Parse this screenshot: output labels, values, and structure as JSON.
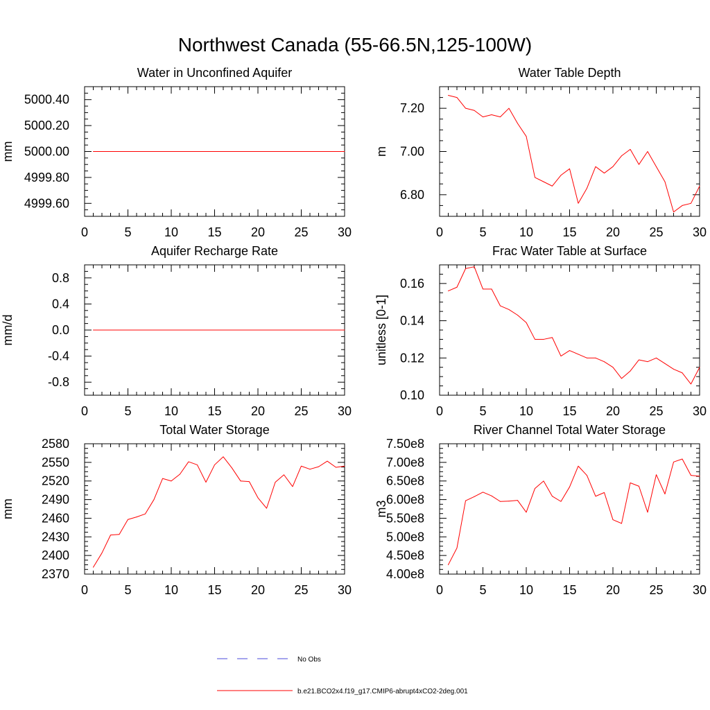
{
  "title": "Northwest Canada (55-66.5N,125-100W)",
  "chart_data": [
    {
      "type": "line",
      "title": "Water in Unconfined Aquifer",
      "ylabel": "mm",
      "xlim": [
        0,
        30
      ],
      "ylim": [
        4999.5,
        5000.5
      ],
      "xticks": [
        0,
        5,
        10,
        15,
        20,
        25,
        30
      ],
      "yticks": [
        4999.6,
        4999.8,
        5000.0,
        5000.2,
        5000.4
      ],
      "ytick_labels": [
        "4999.60",
        "4999.80",
        "5000.00",
        "5000.20",
        "5000.40"
      ],
      "x": [
        1,
        2,
        3,
        4,
        5,
        6,
        7,
        8,
        9,
        10,
        11,
        12,
        13,
        14,
        15,
        16,
        17,
        18,
        19,
        20,
        21,
        22,
        23,
        24,
        25,
        26,
        27,
        28,
        29,
        30
      ],
      "values": [
        5000,
        5000,
        5000,
        5000,
        5000,
        5000,
        5000,
        5000,
        5000,
        5000,
        5000,
        5000,
        5000,
        5000,
        5000,
        5000,
        5000,
        5000,
        5000,
        5000,
        5000,
        5000,
        5000,
        5000,
        5000,
        5000,
        5000,
        5000,
        5000,
        5000
      ]
    },
    {
      "type": "line",
      "title": "Water Table Depth",
      "ylabel": "m",
      "xlim": [
        0,
        30
      ],
      "ylim": [
        6.7,
        7.3
      ],
      "xticks": [
        0,
        5,
        10,
        15,
        20,
        25,
        30
      ],
      "yticks": [
        6.8,
        7.0,
        7.2
      ],
      "ytick_labels": [
        "6.80",
        "7.00",
        "7.20"
      ],
      "x": [
        1,
        2,
        3,
        4,
        5,
        6,
        7,
        8,
        9,
        10,
        11,
        12,
        13,
        14,
        15,
        16,
        17,
        18,
        19,
        20,
        21,
        22,
        23,
        24,
        25,
        26,
        27,
        28,
        29,
        30
      ],
      "values": [
        7.26,
        7.25,
        7.2,
        7.19,
        7.16,
        7.17,
        7.16,
        7.2,
        7.13,
        7.07,
        6.88,
        6.86,
        6.84,
        6.89,
        6.92,
        6.76,
        6.83,
        6.93,
        6.9,
        6.93,
        6.98,
        7.01,
        6.94,
        7.0,
        6.93,
        6.86,
        6.72,
        6.75,
        6.76,
        6.84
      ]
    },
    {
      "type": "line",
      "title": "Aquifer Recharge Rate",
      "ylabel": "mm/d",
      "xlim": [
        0,
        30
      ],
      "ylim": [
        -1.0,
        1.0
      ],
      "xticks": [
        0,
        5,
        10,
        15,
        20,
        25,
        30
      ],
      "yticks": [
        -0.8,
        -0.4,
        0.0,
        0.4,
        0.8
      ],
      "ytick_labels": [
        "-0.8",
        "-0.4",
        "0.0",
        "0.4",
        "0.8"
      ],
      "x": [
        1,
        2,
        3,
        4,
        5,
        6,
        7,
        8,
        9,
        10,
        11,
        12,
        13,
        14,
        15,
        16,
        17,
        18,
        19,
        20,
        21,
        22,
        23,
        24,
        25,
        26,
        27,
        28,
        29,
        30
      ],
      "values": [
        0,
        0,
        0,
        0,
        0,
        0,
        0,
        0,
        0,
        0,
        0,
        0,
        0,
        0,
        0,
        0,
        0,
        0,
        0,
        0,
        0,
        0,
        0,
        0,
        0,
        0,
        0,
        0,
        0,
        0
      ]
    },
    {
      "type": "line",
      "title": "Frac Water Table at Surface",
      "ylabel": "unitless [0-1]",
      "xlim": [
        0,
        30
      ],
      "ylim": [
        0.1,
        0.17
      ],
      "xticks": [
        0,
        5,
        10,
        15,
        20,
        25,
        30
      ],
      "yticks": [
        0.1,
        0.12,
        0.14,
        0.16
      ],
      "ytick_labels": [
        "0.10",
        "0.12",
        "0.14",
        "0.16"
      ],
      "x": [
        1,
        2,
        3,
        4,
        5,
        6,
        7,
        8,
        9,
        10,
        11,
        12,
        13,
        14,
        15,
        16,
        17,
        18,
        19,
        20,
        21,
        22,
        23,
        24,
        25,
        26,
        27,
        28,
        29,
        30
      ],
      "values": [
        0.156,
        0.158,
        0.168,
        0.169,
        0.157,
        0.157,
        0.148,
        0.146,
        0.143,
        0.139,
        0.13,
        0.13,
        0.131,
        0.121,
        0.124,
        0.122,
        0.12,
        0.12,
        0.118,
        0.115,
        0.109,
        0.113,
        0.119,
        0.118,
        0.12,
        0.117,
        0.114,
        0.112,
        0.106,
        0.115
      ]
    },
    {
      "type": "line",
      "title": "Total Water Storage",
      "ylabel": "mm",
      "xlim": [
        0,
        30
      ],
      "ylim": [
        2370,
        2580
      ],
      "xticks": [
        0,
        5,
        10,
        15,
        20,
        25,
        30
      ],
      "yticks": [
        2370,
        2400,
        2430,
        2460,
        2490,
        2520,
        2550,
        2580
      ],
      "ytick_labels": [
        "2370",
        "2400",
        "2430",
        "2460",
        "2490",
        "2520",
        "2550",
        "2580"
      ],
      "x": [
        1,
        2,
        3,
        4,
        5,
        6,
        7,
        8,
        9,
        10,
        11,
        12,
        13,
        14,
        15,
        16,
        17,
        18,
        19,
        20,
        21,
        22,
        23,
        24,
        25,
        26,
        27,
        28,
        29,
        30
      ],
      "values": [
        2381,
        2404,
        2433,
        2434,
        2458,
        2462,
        2467,
        2490,
        2524,
        2520,
        2531,
        2551,
        2546,
        2518,
        2546,
        2559,
        2541,
        2520,
        2519,
        2493,
        2476,
        2518,
        2530,
        2511,
        2544,
        2539,
        2543,
        2552,
        2542,
        2544
      ]
    },
    {
      "type": "line",
      "title": "River Channel Total Water Storage",
      "ylabel": "m3",
      "xlim": [
        0,
        30
      ],
      "ylim": [
        400000000,
        750000000
      ],
      "xticks": [
        0,
        5,
        10,
        15,
        20,
        25,
        30
      ],
      "yticks": [
        400000000,
        450000000,
        500000000,
        550000000,
        600000000,
        650000000,
        700000000,
        750000000
      ],
      "ytick_labels": [
        "4.00e8",
        "4.50e8",
        "5.00e8",
        "5.50e8",
        "6.00e8",
        "6.50e8",
        "7.00e8",
        "7.50e8"
      ],
      "x": [
        1,
        2,
        3,
        4,
        5,
        6,
        7,
        8,
        9,
        10,
        11,
        12,
        13,
        14,
        15,
        16,
        17,
        18,
        19,
        20,
        21,
        22,
        23,
        24,
        25,
        26,
        27,
        28,
        29,
        30
      ],
      "values": [
        425000000,
        470000000,
        597000000,
        608000000,
        620000000,
        610000000,
        595000000,
        596000000,
        598000000,
        566000000,
        630000000,
        650000000,
        609000000,
        595000000,
        634000000,
        690000000,
        665000000,
        609000000,
        619000000,
        546000000,
        536000000,
        645000000,
        636000000,
        566000000,
        667000000,
        615000000,
        701000000,
        709000000,
        665000000,
        663000000
      ]
    }
  ],
  "legend": [
    {
      "label": "No Obs",
      "color": "#4a4adb",
      "dash": true
    },
    {
      "label": "b.e21.BCO2x4.f19_g17.CMIP6-abrupt4xCO2-2deg.001",
      "color": "#ff0000",
      "dash": false
    }
  ],
  "series_color": "#ff0000"
}
